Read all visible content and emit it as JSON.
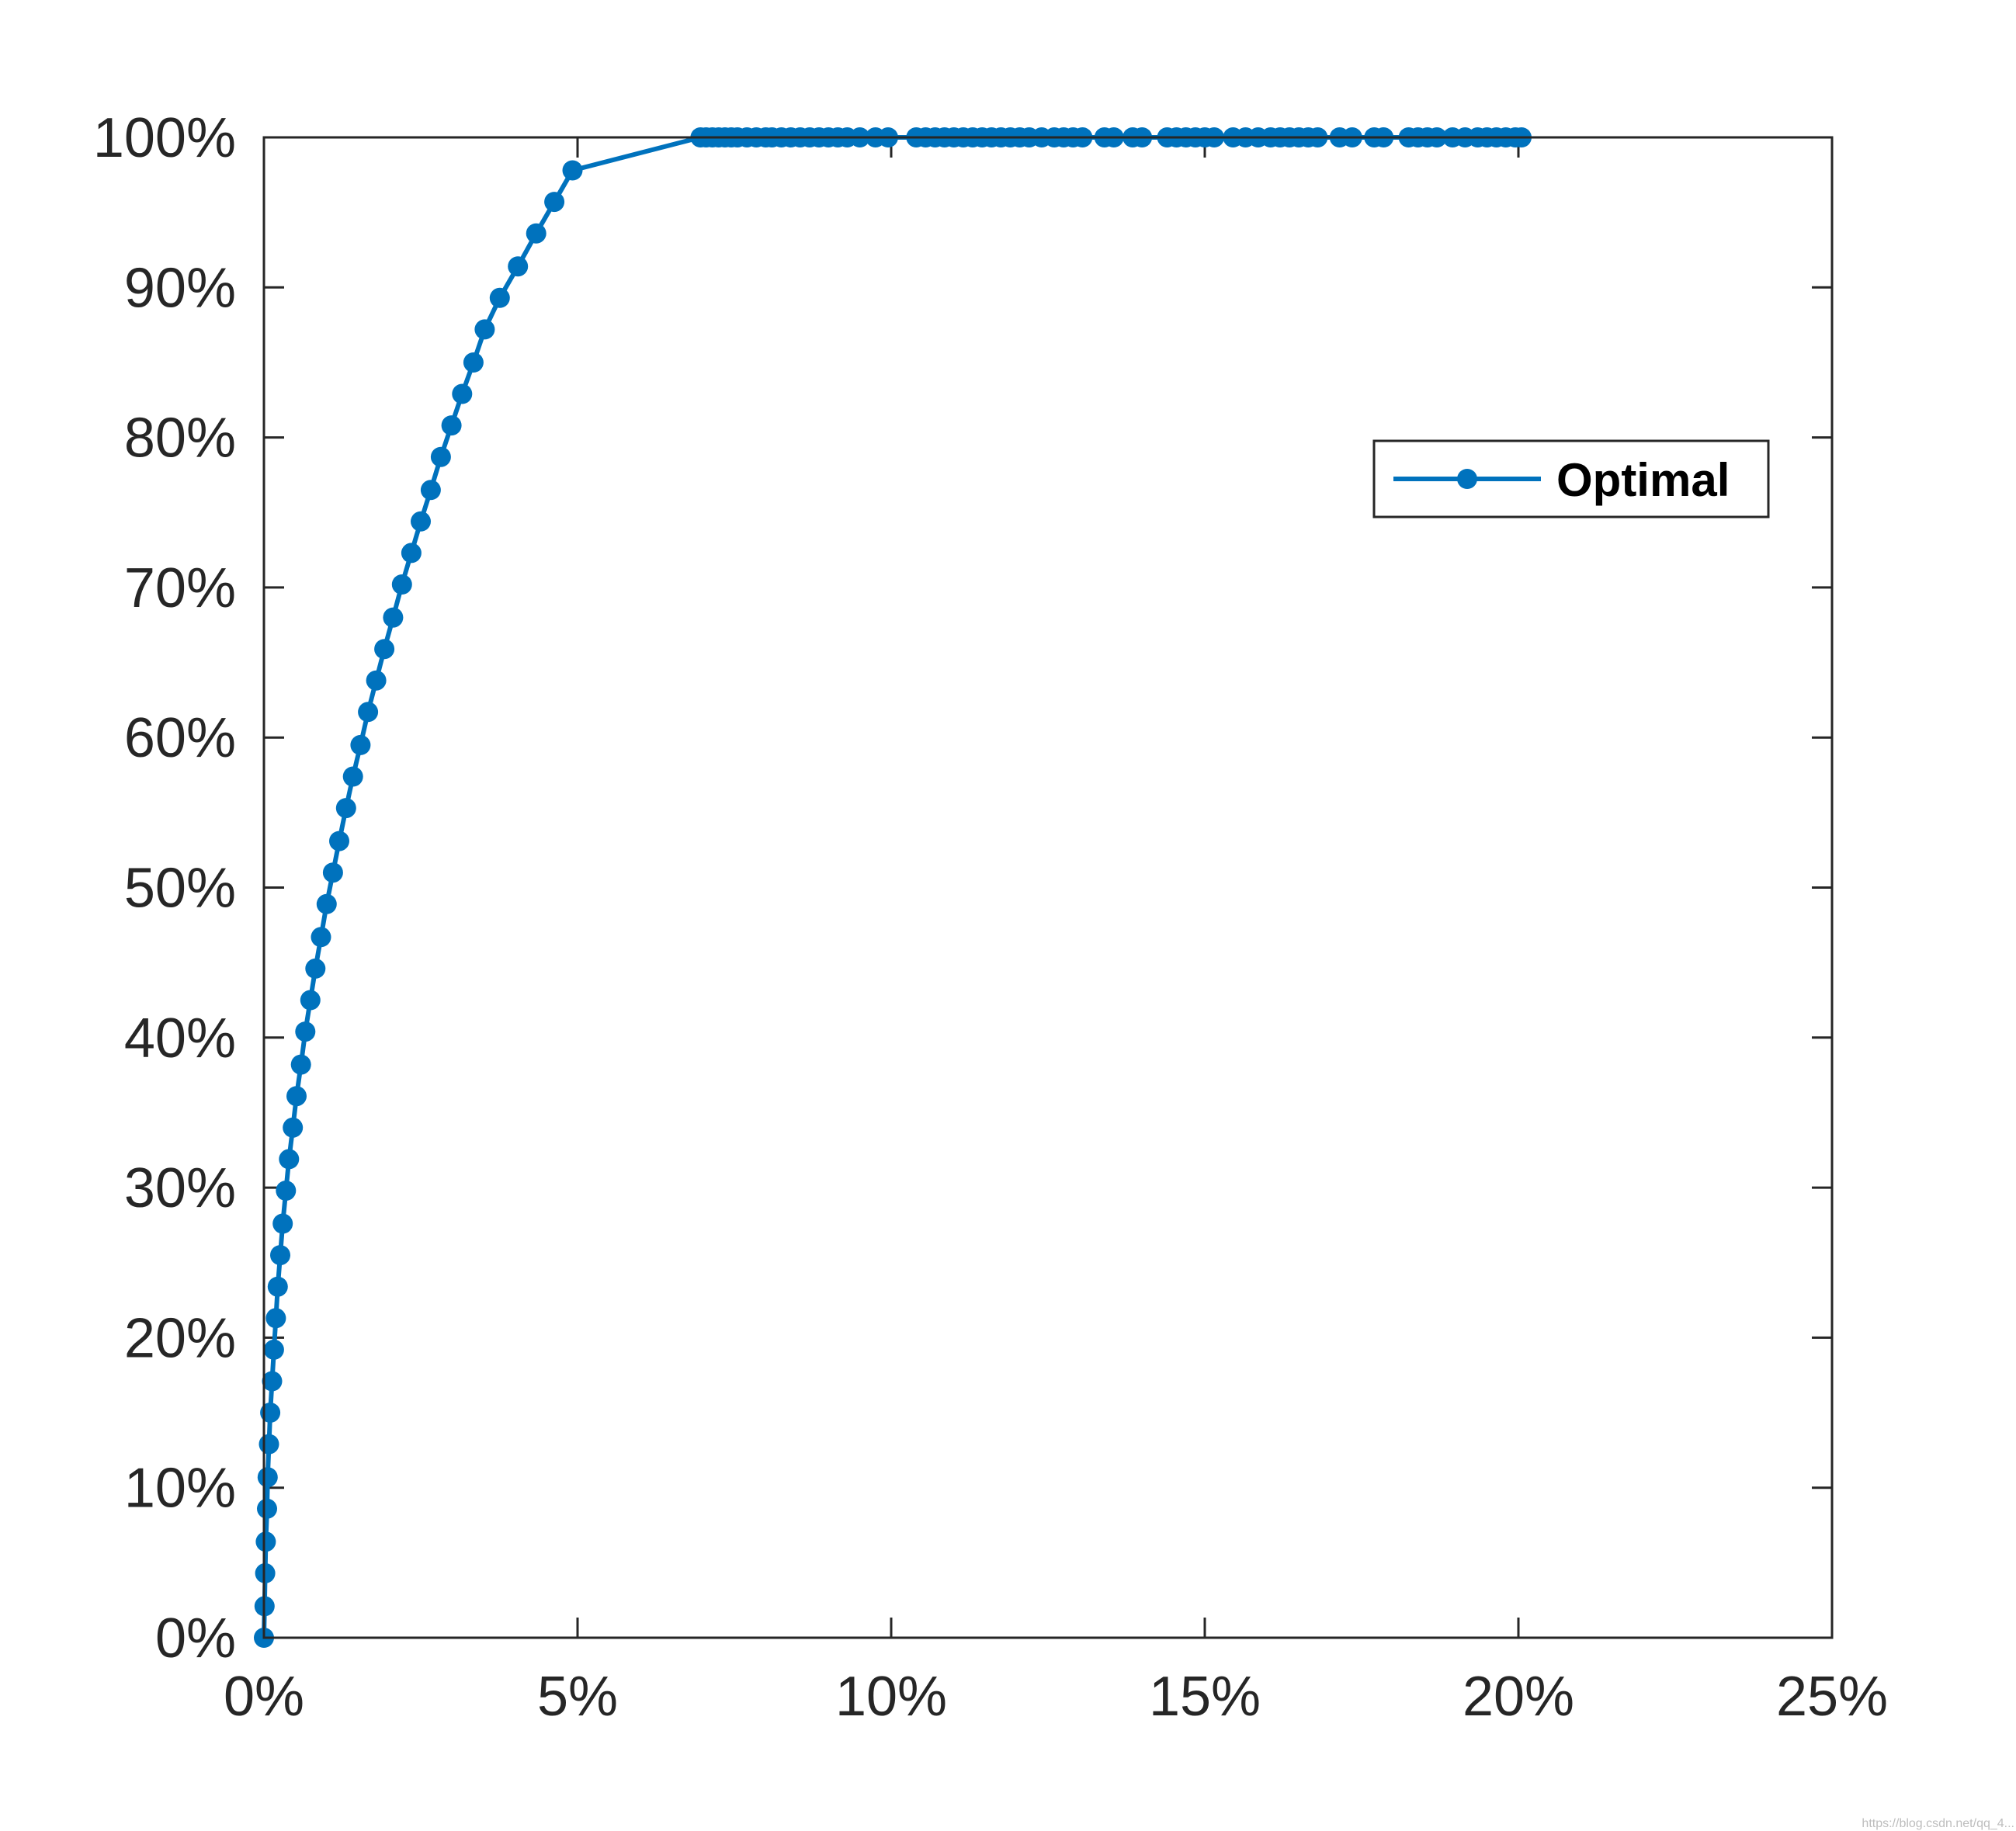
{
  "chart_data": {
    "type": "line",
    "title": "",
    "xlabel": "",
    "ylabel": "",
    "xlim": [
      0,
      25
    ],
    "ylim": [
      0,
      100
    ],
    "x_tick_values": [
      0,
      5,
      10,
      15,
      20,
      25
    ],
    "x_tick_labels": [
      "0%",
      "5%",
      "10%",
      "15%",
      "20%",
      "25%"
    ],
    "y_tick_values": [
      0,
      10,
      20,
      30,
      40,
      50,
      60,
      70,
      80,
      90,
      100
    ],
    "y_tick_labels": [
      "0%",
      "10%",
      "20%",
      "30%",
      "40%",
      "50%",
      "60%",
      "70%",
      "80%",
      "90%",
      "100%"
    ],
    "grid": false,
    "legend_position": "top-right",
    "series": [
      {
        "name": "Optimal",
        "color": "#0072BD",
        "marker": "circle",
        "x": [
          0.0,
          0.01,
          0.02,
          0.03,
          0.05,
          0.06,
          0.08,
          0.1,
          0.13,
          0.16,
          0.19,
          0.22,
          0.26,
          0.3,
          0.35,
          0.4,
          0.46,
          0.52,
          0.59,
          0.66,
          0.74,
          0.82,
          0.91,
          1.0,
          1.1,
          1.2,
          1.31,
          1.42,
          1.54,
          1.66,
          1.79,
          1.92,
          2.06,
          2.2,
          2.35,
          2.5,
          2.66,
          2.82,
          2.99,
          3.16,
          3.34,
          3.52,
          3.76,
          4.05,
          4.34,
          4.63,
          4.92,
          6.96,
          7.05,
          7.15,
          7.25,
          7.35,
          7.45,
          7.55,
          7.7,
          7.85,
          8.0,
          8.1,
          8.25,
          8.4,
          8.55,
          8.7,
          8.85,
          9.0,
          9.15,
          9.3,
          9.5,
          9.75,
          9.95,
          10.4,
          10.55,
          10.7,
          10.85,
          11.0,
          11.15,
          11.3,
          11.45,
          11.6,
          11.75,
          11.9,
          12.05,
          12.2,
          12.4,
          12.6,
          12.75,
          12.9,
          13.05,
          13.4,
          13.55,
          13.85,
          14.0,
          14.4,
          14.55,
          14.7,
          14.85,
          15.0,
          15.15,
          15.45,
          15.65,
          15.85,
          16.05,
          16.2,
          16.35,
          16.5,
          16.65,
          16.8,
          17.15,
          17.35,
          17.7,
          17.85,
          18.25,
          18.4,
          18.55,
          18.7,
          18.95,
          19.15,
          19.35,
          19.5,
          19.65,
          19.8,
          19.95,
          20.05
        ],
        "y": [
          0.0,
          2.1,
          4.3,
          6.4,
          8.6,
          10.7,
          12.9,
          15.0,
          17.1,
          19.2,
          21.3,
          23.4,
          25.5,
          27.6,
          29.8,
          31.9,
          34.0,
          36.1,
          38.2,
          40.4,
          42.5,
          44.6,
          46.7,
          48.9,
          51.0,
          53.1,
          55.3,
          57.4,
          59.5,
          61.7,
          63.8,
          65.9,
          68.0,
          70.2,
          72.3,
          74.4,
          76.5,
          78.7,
          80.8,
          82.9,
          85.0,
          87.2,
          89.3,
          91.4,
          93.6,
          95.7,
          97.8,
          100,
          100,
          100,
          100,
          100,
          100,
          100,
          100,
          100,
          100,
          100,
          100,
          100,
          100,
          100,
          100,
          100,
          100,
          100,
          100,
          100,
          100,
          100,
          100,
          100,
          100,
          100,
          100,
          100,
          100,
          100,
          100,
          100,
          100,
          100,
          100,
          100,
          100,
          100,
          100,
          100,
          100,
          100,
          100,
          100,
          100,
          100,
          100,
          100,
          100,
          100,
          100,
          100,
          100,
          100,
          100,
          100,
          100,
          100,
          100,
          100,
          100,
          100,
          100,
          100,
          100,
          100,
          100,
          100,
          100,
          100,
          100,
          100,
          100,
          100
        ]
      }
    ]
  },
  "watermark_text": "https://blog.csdn.net/qq_4..."
}
